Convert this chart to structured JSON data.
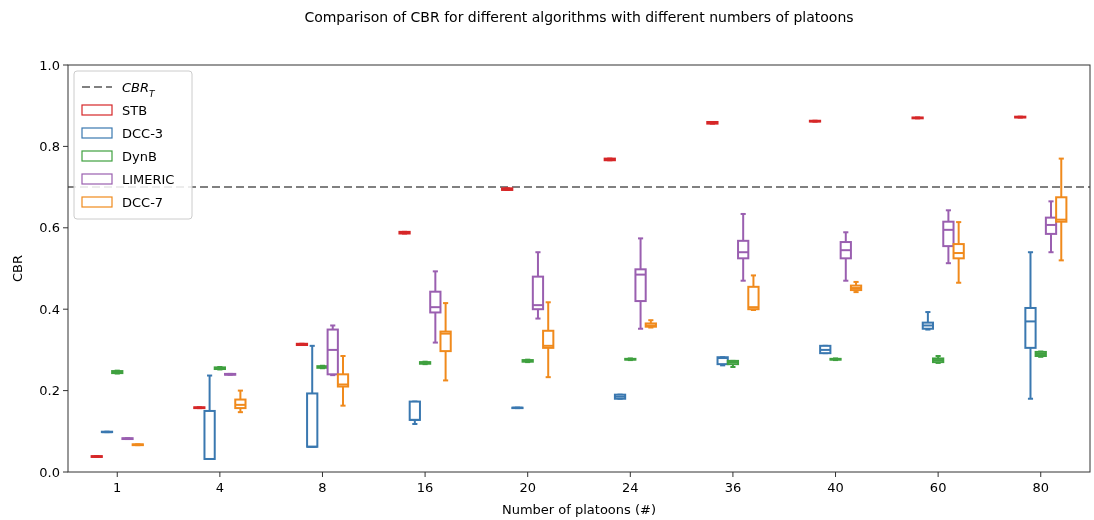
{
  "chart_data": {
    "type": "box",
    "title": "Comparison of CBR for different algorithms with different numbers of platoons",
    "xlabel": "Number of platoons (#)",
    "ylabel": "CBR",
    "categories": [
      "1",
      "4",
      "8",
      "16",
      "20",
      "24",
      "36",
      "40",
      "60",
      "80"
    ],
    "ylim": [
      0,
      1
    ],
    "yticks": [
      {
        "value": 0,
        "label": "0.0"
      },
      {
        "value": 0.2,
        "label": "0.2"
      },
      {
        "value": 0.4,
        "label": "0.4"
      },
      {
        "value": 0.6,
        "label": "0.6"
      },
      {
        "value": 0.8,
        "label": "0.8"
      },
      {
        "value": 1,
        "label": "1.0"
      }
    ],
    "grid": false,
    "legend": "top left",
    "ref_lines": [
      {
        "axis": "y",
        "value": 0.7,
        "label": "CBR$_{T}$",
        "color": "#808080",
        "line_style": "dashed"
      }
    ],
    "series": [
      {
        "name": "STB",
        "color": "#d62728",
        "boxes": [
          {
            "low": 0.038,
            "q1": 0.037,
            "median": 0.038,
            "q3": 0.039,
            "high": 0.039
          },
          {
            "low": 0.157,
            "q1": 0.157,
            "median": 0.158,
            "q3": 0.159,
            "high": 0.159
          },
          {
            "low": 0.312,
            "q1": 0.312,
            "median": 0.313,
            "q3": 0.315,
            "high": 0.315
          },
          {
            "low": 0.586,
            "q1": 0.586,
            "median": 0.588,
            "q3": 0.59,
            "high": 0.59
          },
          {
            "low": 0.693,
            "q1": 0.693,
            "median": 0.695,
            "q3": 0.697,
            "high": 0.697
          },
          {
            "low": 0.766,
            "q1": 0.766,
            "median": 0.768,
            "q3": 0.77,
            "high": 0.77
          },
          {
            "low": 0.856,
            "q1": 0.856,
            "median": 0.858,
            "q3": 0.86,
            "high": 0.86
          },
          {
            "low": 0.861,
            "q1": 0.861,
            "median": 0.862,
            "q3": 0.863,
            "high": 0.863
          },
          {
            "low": 0.869,
            "q1": 0.869,
            "median": 0.87,
            "q3": 0.871,
            "high": 0.871
          },
          {
            "low": 0.871,
            "q1": 0.871,
            "median": 0.872,
            "q3": 0.873,
            "high": 0.873
          }
        ]
      },
      {
        "name": "DCC-3",
        "color": "#3a78b0",
        "boxes": [
          {
            "low": 0.098,
            "q1": 0.098,
            "median": 0.098,
            "q3": 0.099,
            "high": 0.099
          },
          {
            "low": 0.032,
            "q1": 0.032,
            "median": 0.032,
            "q3": 0.15,
            "high": 0.237
          },
          {
            "low": 0.062,
            "q1": 0.062,
            "median": 0.062,
            "q3": 0.193,
            "high": 0.31
          },
          {
            "low": 0.118,
            "q1": 0.128,
            "median": 0.128,
            "q3": 0.173,
            "high": 0.173
          },
          {
            "low": 0.157,
            "q1": 0.157,
            "median": 0.158,
            "q3": 0.158,
            "high": 0.158
          },
          {
            "low": 0.18,
            "q1": 0.18,
            "median": 0.185,
            "q3": 0.19,
            "high": 0.19
          },
          {
            "low": 0.262,
            "q1": 0.265,
            "median": 0.28,
            "q3": 0.282,
            "high": 0.282
          },
          {
            "low": 0.292,
            "q1": 0.292,
            "median": 0.3,
            "q3": 0.31,
            "high": 0.31
          },
          {
            "low": 0.35,
            "q1": 0.352,
            "median": 0.36,
            "q3": 0.367,
            "high": 0.393
          },
          {
            "low": 0.18,
            "q1": 0.305,
            "median": 0.37,
            "q3": 0.403,
            "high": 0.54
          }
        ]
      },
      {
        "name": "DynB",
        "color": "#3fa03f",
        "boxes": [
          {
            "low": 0.242,
            "q1": 0.243,
            "median": 0.245,
            "q3": 0.248,
            "high": 0.249
          },
          {
            "low": 0.252,
            "q1": 0.253,
            "median": 0.255,
            "q3": 0.257,
            "high": 0.258
          },
          {
            "low": 0.255,
            "q1": 0.256,
            "median": 0.258,
            "q3": 0.26,
            "high": 0.261
          },
          {
            "low": 0.265,
            "q1": 0.266,
            "median": 0.268,
            "q3": 0.27,
            "high": 0.271
          },
          {
            "low": 0.27,
            "q1": 0.271,
            "median": 0.273,
            "q3": 0.275,
            "high": 0.276
          },
          {
            "low": 0.275,
            "q1": 0.276,
            "median": 0.277,
            "q3": 0.278,
            "high": 0.279
          },
          {
            "low": 0.258,
            "q1": 0.265,
            "median": 0.27,
            "q3": 0.273,
            "high": 0.273
          },
          {
            "low": 0.275,
            "q1": 0.276,
            "median": 0.277,
            "q3": 0.278,
            "high": 0.279
          },
          {
            "low": 0.268,
            "q1": 0.27,
            "median": 0.275,
            "q3": 0.279,
            "high": 0.285
          },
          {
            "low": 0.283,
            "q1": 0.285,
            "median": 0.29,
            "q3": 0.295,
            "high": 0.296
          }
        ]
      },
      {
        "name": "LIMERIC",
        "color": "#9a5fb0",
        "boxes": [
          {
            "low": 0.081,
            "q1": 0.081,
            "median": 0.082,
            "q3": 0.083,
            "high": 0.083
          },
          {
            "low": 0.239,
            "q1": 0.239,
            "median": 0.24,
            "q3": 0.241,
            "high": 0.241
          },
          {
            "low": 0.238,
            "q1": 0.24,
            "median": 0.3,
            "q3": 0.35,
            "high": 0.36
          },
          {
            "low": 0.318,
            "q1": 0.392,
            "median": 0.405,
            "q3": 0.443,
            "high": 0.493
          },
          {
            "low": 0.377,
            "q1": 0.4,
            "median": 0.41,
            "q3": 0.48,
            "high": 0.54
          },
          {
            "low": 0.352,
            "q1": 0.42,
            "median": 0.485,
            "q3": 0.498,
            "high": 0.574
          },
          {
            "low": 0.47,
            "q1": 0.525,
            "median": 0.54,
            "q3": 0.568,
            "high": 0.634
          },
          {
            "low": 0.47,
            "q1": 0.525,
            "median": 0.545,
            "q3": 0.565,
            "high": 0.589
          },
          {
            "low": 0.513,
            "q1": 0.555,
            "median": 0.595,
            "q3": 0.615,
            "high": 0.643
          },
          {
            "low": 0.54,
            "q1": 0.585,
            "median": 0.607,
            "q3": 0.625,
            "high": 0.665
          }
        ]
      },
      {
        "name": "DCC-7",
        "color": "#f08a1c",
        "boxes": [
          {
            "low": 0.066,
            "q1": 0.066,
            "median": 0.067,
            "q3": 0.068,
            "high": 0.068
          },
          {
            "low": 0.147,
            "q1": 0.157,
            "median": 0.165,
            "q3": 0.178,
            "high": 0.2
          },
          {
            "low": 0.163,
            "q1": 0.21,
            "median": 0.215,
            "q3": 0.24,
            "high": 0.285
          },
          {
            "low": 0.225,
            "q1": 0.297,
            "median": 0.34,
            "q3": 0.345,
            "high": 0.415
          },
          {
            "low": 0.233,
            "q1": 0.305,
            "median": 0.31,
            "q3": 0.347,
            "high": 0.417
          },
          {
            "low": 0.355,
            "q1": 0.357,
            "median": 0.36,
            "q3": 0.365,
            "high": 0.373
          },
          {
            "low": 0.398,
            "q1": 0.4,
            "median": 0.405,
            "q3": 0.455,
            "high": 0.483
          },
          {
            "low": 0.442,
            "q1": 0.447,
            "median": 0.452,
            "q3": 0.458,
            "high": 0.467
          },
          {
            "low": 0.465,
            "q1": 0.525,
            "median": 0.538,
            "q3": 0.56,
            "high": 0.614
          },
          {
            "low": 0.52,
            "q1": 0.615,
            "median": 0.62,
            "q3": 0.675,
            "high": 0.77
          }
        ]
      }
    ]
  }
}
